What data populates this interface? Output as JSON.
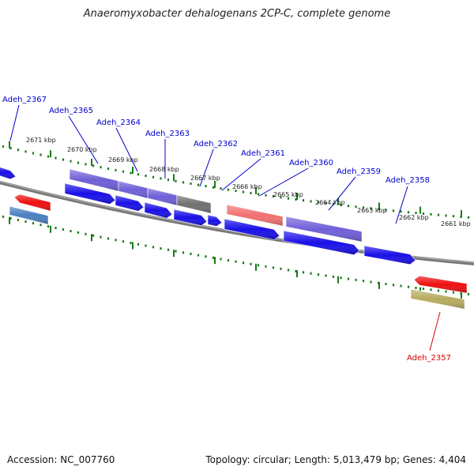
{
  "title": "Anaeromyxobacter dehalogenans 2CP-C, complete genome",
  "footer": {
    "accession": "Accession: NC_007760",
    "topology": "Topology: circular; Length: 5,013,479 bp; Genes: 4,404"
  },
  "kbp_ticks": [
    "2671 kbp",
    "2670 kbp",
    "2669 kbp",
    "2668 kbp",
    "2667 kbp",
    "2666 kbp",
    "2665 kbp",
    "2664 kbp",
    "2663 kbp",
    "2662 kbp",
    "2661 kbp"
  ],
  "gene_labels": [
    "Adeh_2367",
    "Adeh_2365",
    "Adeh_2364",
    "Adeh_2363",
    "Adeh_2362",
    "Adeh_2361",
    "Adeh_2360",
    "Adeh_2359",
    "Adeh_2358",
    "Adeh_2357"
  ],
  "colors": {
    "cds_blue": "#1a10e8",
    "cds_purple": "#7060d8",
    "cds_gray": "#707070",
    "cds_pink": "#f07070",
    "cds_red": "#ee1010",
    "cds_steel": "#4a80c0",
    "cds_khaki": "#b8ac60",
    "label_blue": "#0000cc",
    "label_red": "#dd0000",
    "tick_green": "#1a7a1a",
    "backbone": "#777777"
  }
}
